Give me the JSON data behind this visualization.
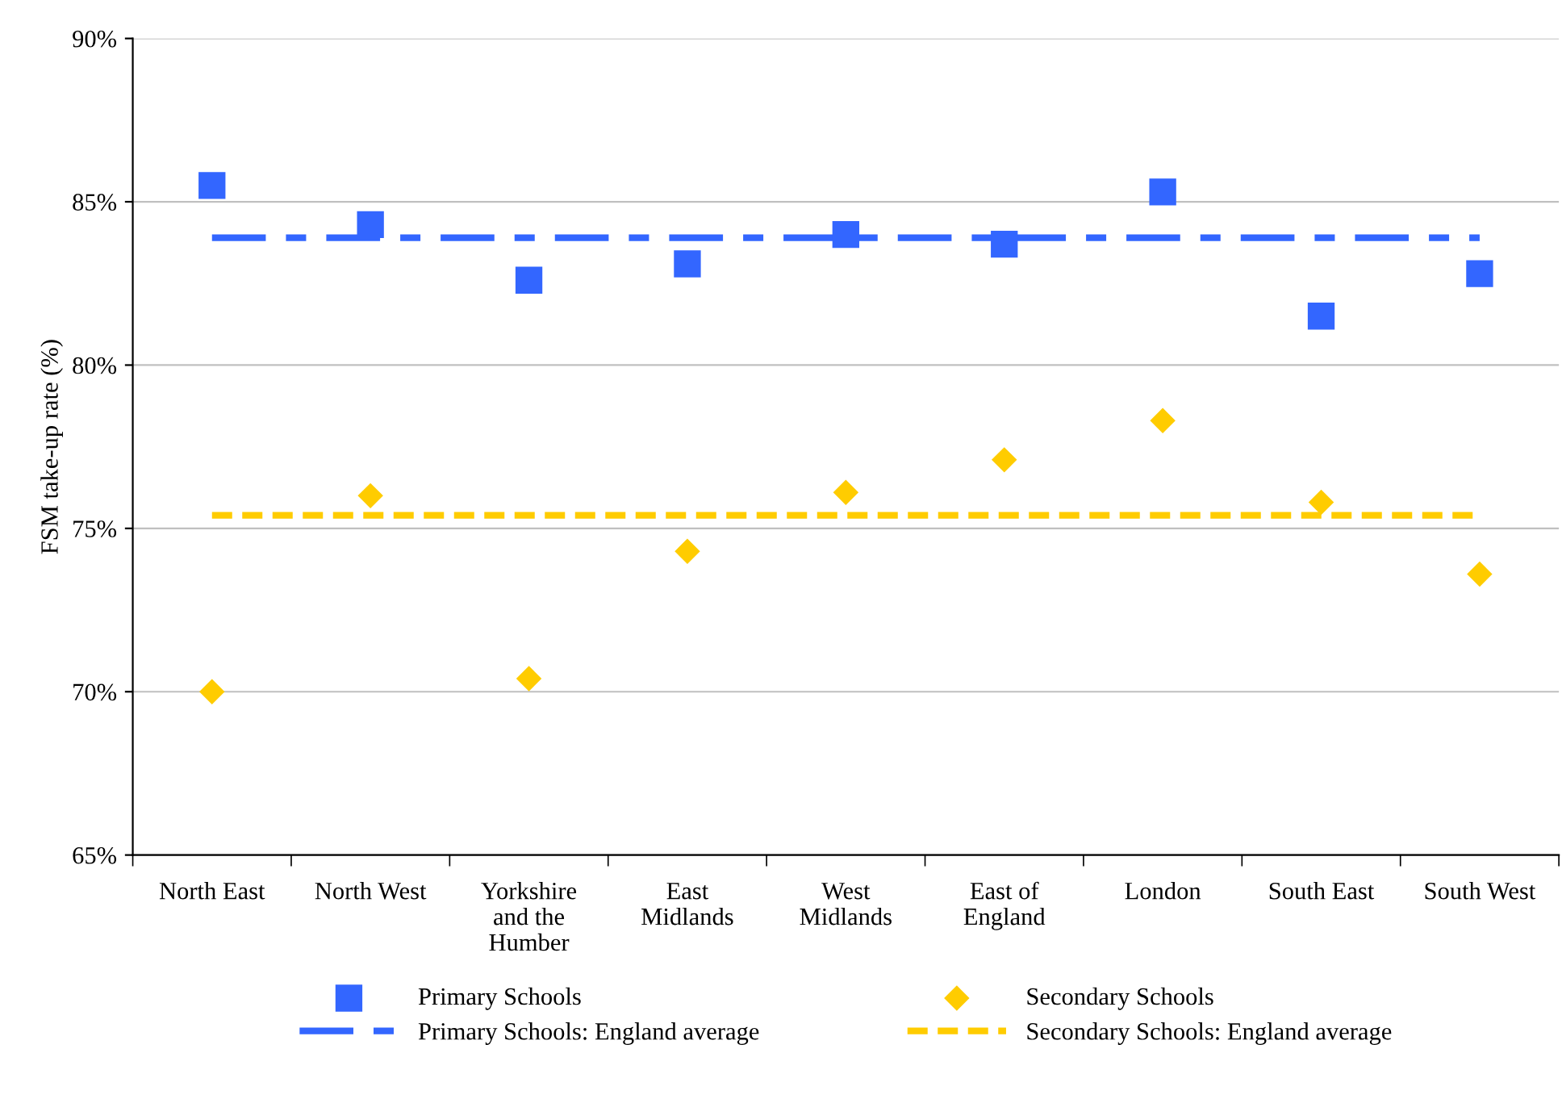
{
  "chart_data": {
    "type": "scatter",
    "ylabel": "FSM take-up rate (%)",
    "categories": [
      "North East",
      "North West",
      "Yorkshire\nand the\nHumber",
      "East\nMidlands",
      "West\nMidlands",
      "East of\nEngland",
      "London",
      "South East",
      "South West"
    ],
    "series": [
      {
        "name": "Primary Schools",
        "marker": "square",
        "color": "#3366ff",
        "values": [
          85.5,
          84.3,
          82.6,
          83.1,
          84.0,
          83.7,
          85.3,
          81.5,
          82.8
        ]
      },
      {
        "name": "Secondary Schools",
        "marker": "diamond",
        "color": "#ffcc00",
        "values": [
          70.0,
          76.0,
          70.4,
          74.3,
          76.1,
          77.1,
          78.3,
          75.8,
          73.6
        ]
      },
      {
        "name": "Primary Schools: England average",
        "type": "line",
        "marker": "none",
        "line_style": "dashdot",
        "color": "#3366ff",
        "values": [
          83.9,
          83.9,
          83.9,
          83.9,
          83.9,
          83.9,
          83.9,
          83.9,
          83.9
        ]
      },
      {
        "name": "Secondary Schools: England average",
        "type": "line",
        "marker": "none",
        "line_style": "dashed",
        "color": "#ffcc00",
        "values": [
          75.4,
          75.4,
          75.4,
          75.4,
          75.4,
          75.4,
          75.4,
          75.4,
          75.4
        ]
      }
    ],
    "ylim": [
      65,
      90
    ],
    "yticks": [
      {
        "value": 65,
        "label": "65%"
      },
      {
        "value": 70,
        "label": "70%"
      },
      {
        "value": 75,
        "label": "75%"
      },
      {
        "value": 80,
        "label": "80%"
      },
      {
        "value": 85,
        "label": "85%"
      },
      {
        "value": 90,
        "label": "90%"
      }
    ],
    "grid": "y",
    "legend": "bottom"
  }
}
